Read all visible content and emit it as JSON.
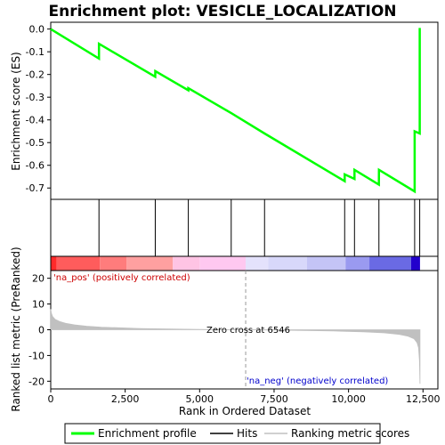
{
  "chart_data": {
    "type": "line",
    "title": "Enrichment plot: VESICLE_LOCALIZATION",
    "top_panel": {
      "ylabel": "Enrichment score (ES)",
      "ylim": [
        -0.75,
        0.03
      ],
      "yticks": [
        0.0,
        -0.1,
        -0.2,
        -0.3,
        -0.4,
        -0.5,
        -0.6,
        -0.7
      ],
      "ytick_labels": [
        "0.0",
        "-0.1",
        "-0.2",
        "-0.3",
        "-0.4",
        "-0.5",
        "-0.6",
        "-0.7"
      ],
      "series": [
        {
          "name": "Enrichment profile",
          "color": "#00ff00",
          "x": [
            0,
            1620,
            1621,
            3510,
            3511,
            4620,
            4621,
            6060,
            7180,
            9870,
            9871,
            10200,
            10201,
            11020,
            11021,
            12220,
            12221,
            12390,
            12391
          ],
          "y": [
            0.0,
            -0.13,
            -0.065,
            -0.21,
            -0.185,
            -0.27,
            -0.26,
            -0.37,
            -0.46,
            -0.67,
            -0.64,
            -0.66,
            -0.62,
            -0.685,
            -0.62,
            -0.715,
            -0.45,
            -0.46,
            0.005
          ]
        }
      ]
    },
    "hits": {
      "name": "Hits",
      "positions": [
        1620,
        3510,
        4620,
        6060,
        7180,
        9870,
        10200,
        11020,
        12220,
        12390
      ]
    },
    "bottom_panel": {
      "ylabel": "Ranked list metric (PreRanked)",
      "xlabel": "Rank in Ordered Dataset",
      "xlim": [
        0,
        13000
      ],
      "xticks": [
        0,
        2500,
        5000,
        7500,
        10000,
        12500
      ],
      "xtick_labels": [
        "0",
        "2,500",
        "5,000",
        "7,500",
        "10,000",
        "12,500"
      ],
      "ylim": [
        -23,
        23
      ],
      "yticks": [
        20,
        10,
        0,
        -10,
        -20
      ],
      "ytick_labels": [
        "20",
        "10",
        "0",
        "-10",
        "-20"
      ],
      "annotations": {
        "pos_label": "'na_pos' (positively correlated)",
        "neg_label": "'na_neg' (negatively correlated)",
        "zero_cross_label": "Zero cross at 6546",
        "zero_cross_rank": 6546
      },
      "metric_curve": {
        "name": "Ranking metric scores",
        "color": "#c0c0c0",
        "x": [
          0,
          20,
          60,
          150,
          300,
          500,
          800,
          1200,
          1700,
          2300,
          3000,
          4000,
          5000,
          6000,
          6546,
          7500,
          8500,
          9500,
          10500,
          11200,
          11700,
          12000,
          12200,
          12300,
          12350,
          12380,
          12400
        ],
        "y": [
          8,
          6.5,
          5.2,
          4,
          3.2,
          2.5,
          1.9,
          1.4,
          1.0,
          0.75,
          0.5,
          0.3,
          0.15,
          0.05,
          0,
          -0.15,
          -0.3,
          -0.5,
          -0.8,
          -1.2,
          -1.8,
          -2.5,
          -3.5,
          -5,
          -7,
          -12,
          -21
        ]
      }
    },
    "ranking_bar": {
      "segments": [
        {
          "from": 0,
          "to": 200,
          "color": "#ff2a2a"
        },
        {
          "from": 200,
          "to": 1650,
          "color": "#ff5c5c"
        },
        {
          "from": 1650,
          "to": 2550,
          "color": "#ff7c7c"
        },
        {
          "from": 2550,
          "to": 4100,
          "color": "#ffa0a0"
        },
        {
          "from": 4100,
          "to": 5000,
          "color": "#ffc4e4"
        },
        {
          "from": 5000,
          "to": 6546,
          "color": "#ffc8f0"
        },
        {
          "from": 6546,
          "to": 7300,
          "color": "#e4e2fc"
        },
        {
          "from": 7300,
          "to": 8600,
          "color": "#d8d8fa"
        },
        {
          "from": 8600,
          "to": 9900,
          "color": "#c4c4f6"
        },
        {
          "from": 9900,
          "to": 10700,
          "color": "#9a9af0"
        },
        {
          "from": 10700,
          "to": 12100,
          "color": "#6a6ae4"
        },
        {
          "from": 12100,
          "to": 12400,
          "color": "#2200cc"
        }
      ]
    },
    "legend": {
      "placement": "bottom",
      "items": [
        {
          "label": "Enrichment profile",
          "color": "#00ff00"
        },
        {
          "label": "Hits",
          "color": "#000000"
        },
        {
          "label": "Ranking metric scores",
          "color": "#c0c0c0"
        }
      ]
    }
  }
}
